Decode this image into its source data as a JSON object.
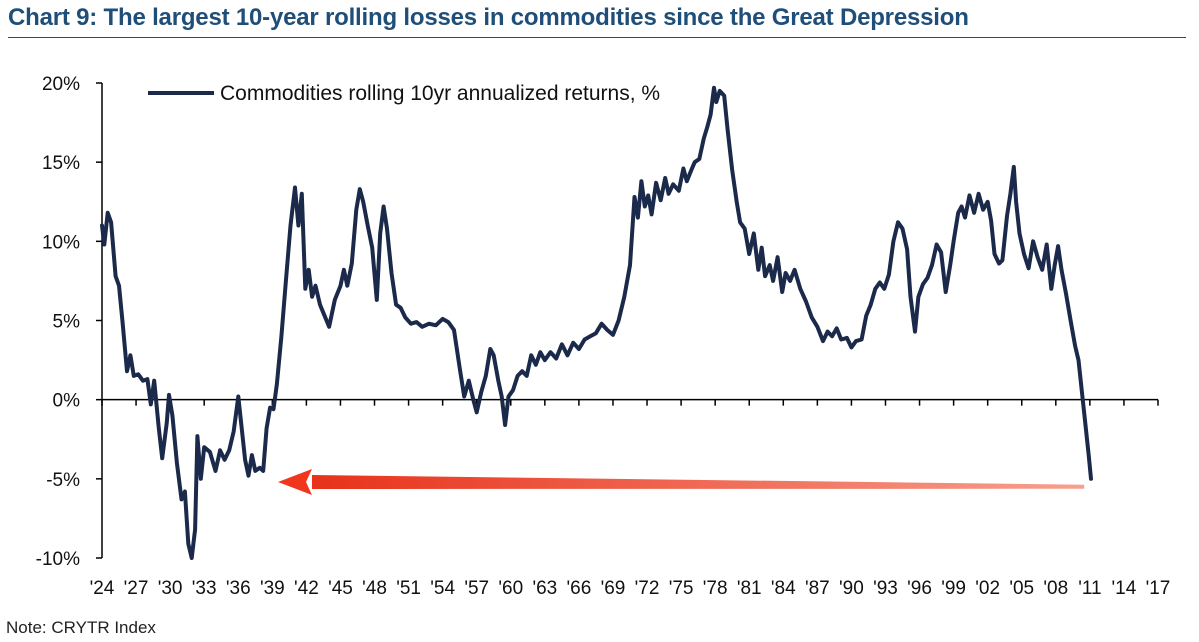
{
  "title": "Chart 9: The largest 10-year rolling losses in commodities since the Great Depression",
  "note": "Note: CRYTR Index",
  "colors": {
    "title": "#1f4e79",
    "series": "#1b2a4a",
    "arrow": "#f0371e"
  },
  "chart_data": {
    "type": "line",
    "xlabel": "",
    "ylabel": "",
    "xlim": [
      1924,
      2017
    ],
    "ylim": [
      -10,
      20
    ],
    "x_ticks": [
      "'24",
      "'27",
      "'30",
      "'33",
      "'36",
      "'39",
      "'42",
      "'45",
      "'48",
      "'51",
      "'54",
      "'57",
      "'60",
      "'63",
      "'66",
      "'69",
      "'72",
      "'75",
      "'78",
      "'81",
      "'84",
      "'87",
      "'90",
      "'93",
      "'96",
      "'99",
      "'02",
      "'05",
      "'08",
      "'11",
      "'14",
      "'17"
    ],
    "x_tick_values": [
      1924,
      1927,
      1930,
      1933,
      1936,
      1939,
      1942,
      1945,
      1948,
      1951,
      1954,
      1957,
      1960,
      1963,
      1966,
      1969,
      1972,
      1975,
      1978,
      1981,
      1984,
      1987,
      1990,
      1993,
      1996,
      1999,
      2002,
      2005,
      2008,
      2011,
      2014,
      2017
    ],
    "y_ticks": [
      "20%",
      "15%",
      "10%",
      "5%",
      "0%",
      "-5%",
      "-10%"
    ],
    "y_tick_values": [
      20,
      15,
      10,
      5,
      0,
      -5,
      -10
    ],
    "legend": {
      "position": "top-left"
    },
    "series": [
      {
        "name": "Commodities rolling 10yr annualized returns, %",
        "points": [
          [
            1924.0,
            11.0
          ],
          [
            1924.2,
            9.8
          ],
          [
            1924.5,
            11.8
          ],
          [
            1924.8,
            11.2
          ],
          [
            1925.2,
            7.8
          ],
          [
            1925.5,
            7.2
          ],
          [
            1925.8,
            5.0
          ],
          [
            1926.2,
            1.8
          ],
          [
            1926.5,
            2.8
          ],
          [
            1926.8,
            1.5
          ],
          [
            1927.2,
            1.6
          ],
          [
            1927.6,
            1.2
          ],
          [
            1928.0,
            1.3
          ],
          [
            1928.3,
            -0.3
          ],
          [
            1928.6,
            1.2
          ],
          [
            1929.0,
            -1.8
          ],
          [
            1929.3,
            -3.7
          ],
          [
            1929.7,
            -1.5
          ],
          [
            1929.9,
            0.3
          ],
          [
            1930.2,
            -1.0
          ],
          [
            1930.6,
            -4.0
          ],
          [
            1931.0,
            -6.3
          ],
          [
            1931.3,
            -5.8
          ],
          [
            1931.6,
            -9.1
          ],
          [
            1931.9,
            -10.0
          ],
          [
            1932.2,
            -8.2
          ],
          [
            1932.4,
            -2.3
          ],
          [
            1932.7,
            -5.0
          ],
          [
            1933.0,
            -3.0
          ],
          [
            1933.5,
            -3.3
          ],
          [
            1934.0,
            -4.5
          ],
          [
            1934.4,
            -3.2
          ],
          [
            1934.8,
            -3.8
          ],
          [
            1935.2,
            -3.2
          ],
          [
            1935.6,
            -2.0
          ],
          [
            1936.0,
            0.2
          ],
          [
            1936.3,
            -1.8
          ],
          [
            1936.6,
            -3.8
          ],
          [
            1936.9,
            -4.8
          ],
          [
            1937.2,
            -3.5
          ],
          [
            1937.5,
            -4.5
          ],
          [
            1937.9,
            -4.3
          ],
          [
            1938.2,
            -4.5
          ],
          [
            1938.5,
            -1.8
          ],
          [
            1938.8,
            -0.5
          ],
          [
            1939.1,
            -0.6
          ],
          [
            1939.4,
            1.0
          ],
          [
            1939.8,
            4.0
          ],
          [
            1940.2,
            7.5
          ],
          [
            1940.6,
            11.0
          ],
          [
            1941.0,
            13.4
          ],
          [
            1941.3,
            11.0
          ],
          [
            1941.6,
            13.0
          ],
          [
            1941.9,
            7.0
          ],
          [
            1942.2,
            8.2
          ],
          [
            1942.5,
            6.5
          ],
          [
            1942.8,
            7.2
          ],
          [
            1943.2,
            6.0
          ],
          [
            1943.6,
            5.3
          ],
          [
            1944.0,
            4.6
          ],
          [
            1944.5,
            6.3
          ],
          [
            1945.0,
            7.2
          ],
          [
            1945.3,
            8.2
          ],
          [
            1945.6,
            7.2
          ],
          [
            1946.0,
            8.6
          ],
          [
            1946.4,
            12.0
          ],
          [
            1946.7,
            13.3
          ],
          [
            1947.0,
            12.5
          ],
          [
            1947.4,
            11.0
          ],
          [
            1947.8,
            9.6
          ],
          [
            1948.2,
            6.3
          ],
          [
            1948.5,
            10.5
          ],
          [
            1948.8,
            12.2
          ],
          [
            1949.1,
            10.8
          ],
          [
            1949.5,
            8.0
          ],
          [
            1949.9,
            6.0
          ],
          [
            1950.3,
            5.8
          ],
          [
            1950.7,
            5.2
          ],
          [
            1951.2,
            4.8
          ],
          [
            1951.7,
            4.9
          ],
          [
            1952.2,
            4.6
          ],
          [
            1952.8,
            4.8
          ],
          [
            1953.4,
            4.7
          ],
          [
            1954.0,
            5.1
          ],
          [
            1954.5,
            4.9
          ],
          [
            1955.0,
            4.4
          ],
          [
            1955.5,
            2.0
          ],
          [
            1955.9,
            0.2
          ],
          [
            1956.3,
            1.2
          ],
          [
            1956.7,
            0.0
          ],
          [
            1957.0,
            -0.8
          ],
          [
            1957.4,
            0.5
          ],
          [
            1957.8,
            1.5
          ],
          [
            1958.2,
            3.2
          ],
          [
            1958.5,
            2.8
          ],
          [
            1958.9,
            1.2
          ],
          [
            1959.2,
            0.2
          ],
          [
            1959.5,
            -1.6
          ],
          [
            1959.8,
            0.2
          ],
          [
            1960.2,
            0.6
          ],
          [
            1960.6,
            1.5
          ],
          [
            1961.0,
            1.8
          ],
          [
            1961.4,
            1.5
          ],
          [
            1961.8,
            2.8
          ],
          [
            1962.2,
            2.2
          ],
          [
            1962.6,
            3.0
          ],
          [
            1963.0,
            2.5
          ],
          [
            1963.5,
            3.0
          ],
          [
            1964.0,
            2.6
          ],
          [
            1964.5,
            3.5
          ],
          [
            1965.0,
            2.8
          ],
          [
            1965.5,
            3.6
          ],
          [
            1966.0,
            3.2
          ],
          [
            1966.5,
            3.8
          ],
          [
            1967.0,
            4.0
          ],
          [
            1967.5,
            4.2
          ],
          [
            1968.0,
            4.8
          ],
          [
            1968.5,
            4.4
          ],
          [
            1969.0,
            4.1
          ],
          [
            1969.5,
            5.0
          ],
          [
            1970.0,
            6.5
          ],
          [
            1970.5,
            8.5
          ],
          [
            1970.9,
            12.8
          ],
          [
            1971.2,
            11.5
          ],
          [
            1971.5,
            13.8
          ],
          [
            1971.8,
            12.2
          ],
          [
            1972.1,
            12.9
          ],
          [
            1972.4,
            11.7
          ],
          [
            1972.8,
            13.7
          ],
          [
            1973.2,
            12.6
          ],
          [
            1973.6,
            14.0
          ],
          [
            1973.9,
            13.0
          ],
          [
            1974.3,
            13.6
          ],
          [
            1974.8,
            13.2
          ],
          [
            1975.2,
            14.6
          ],
          [
            1975.5,
            13.8
          ],
          [
            1975.9,
            14.5
          ],
          [
            1976.2,
            15.0
          ],
          [
            1976.6,
            15.2
          ],
          [
            1977.0,
            16.5
          ],
          [
            1977.3,
            17.2
          ],
          [
            1977.6,
            18.0
          ],
          [
            1977.9,
            19.7
          ],
          [
            1978.1,
            18.8
          ],
          [
            1978.4,
            19.5
          ],
          [
            1978.8,
            19.2
          ],
          [
            1979.1,
            17.0
          ],
          [
            1979.5,
            14.5
          ],
          [
            1979.9,
            12.5
          ],
          [
            1980.2,
            11.2
          ],
          [
            1980.6,
            10.8
          ],
          [
            1981.0,
            9.2
          ],
          [
            1981.4,
            10.5
          ],
          [
            1981.8,
            8.2
          ],
          [
            1982.1,
            9.6
          ],
          [
            1982.4,
            7.8
          ],
          [
            1982.8,
            8.5
          ],
          [
            1983.1,
            7.5
          ],
          [
            1983.5,
            9.0
          ],
          [
            1983.9,
            6.8
          ],
          [
            1984.2,
            8.0
          ],
          [
            1984.6,
            7.5
          ],
          [
            1985.0,
            8.2
          ],
          [
            1985.5,
            7.0
          ],
          [
            1986.0,
            6.2
          ],
          [
            1986.5,
            5.2
          ],
          [
            1987.0,
            4.6
          ],
          [
            1987.5,
            3.7
          ],
          [
            1987.9,
            4.3
          ],
          [
            1988.3,
            4.0
          ],
          [
            1988.7,
            4.5
          ],
          [
            1989.1,
            3.8
          ],
          [
            1989.6,
            3.9
          ],
          [
            1990.0,
            3.3
          ],
          [
            1990.4,
            3.7
          ],
          [
            1990.9,
            3.8
          ],
          [
            1991.3,
            5.3
          ],
          [
            1991.7,
            6.0
          ],
          [
            1992.1,
            7.0
          ],
          [
            1992.5,
            7.4
          ],
          [
            1992.9,
            7.0
          ],
          [
            1993.3,
            7.9
          ],
          [
            1993.7,
            10.0
          ],
          [
            1994.1,
            11.2
          ],
          [
            1994.5,
            10.8
          ],
          [
            1994.9,
            9.5
          ],
          [
            1995.2,
            6.5
          ],
          [
            1995.6,
            4.3
          ],
          [
            1995.9,
            6.5
          ],
          [
            1996.3,
            7.3
          ],
          [
            1996.7,
            7.7
          ],
          [
            1997.1,
            8.5
          ],
          [
            1997.5,
            9.8
          ],
          [
            1997.9,
            9.3
          ],
          [
            1998.3,
            6.8
          ],
          [
            1998.7,
            8.5
          ],
          [
            1999.0,
            10.0
          ],
          [
            1999.4,
            11.8
          ],
          [
            1999.7,
            12.2
          ],
          [
            2000.0,
            11.5
          ],
          [
            2000.4,
            12.9
          ],
          [
            2000.8,
            11.8
          ],
          [
            2001.2,
            13.0
          ],
          [
            2001.6,
            12.0
          ],
          [
            2002.0,
            12.5
          ],
          [
            2002.3,
            11.3
          ],
          [
            2002.6,
            9.2
          ],
          [
            2003.0,
            8.6
          ],
          [
            2003.3,
            8.8
          ],
          [
            2003.7,
            11.6
          ],
          [
            2004.0,
            13.0
          ],
          [
            2004.3,
            14.7
          ],
          [
            2004.5,
            12.5
          ],
          [
            2004.8,
            10.5
          ],
          [
            2005.2,
            9.2
          ],
          [
            2005.6,
            8.3
          ],
          [
            2006.0,
            10.0
          ],
          [
            2006.4,
            9.0
          ],
          [
            2006.8,
            8.2
          ],
          [
            2007.2,
            9.8
          ],
          [
            2007.6,
            7.0
          ],
          [
            2007.9,
            8.5
          ],
          [
            2008.2,
            9.7
          ],
          [
            2008.5,
            8.2
          ],
          [
            2008.9,
            6.7
          ],
          [
            2009.3,
            5.0
          ],
          [
            2009.7,
            3.4
          ],
          [
            2010.0,
            2.5
          ],
          [
            2010.3,
            0.5
          ],
          [
            2010.6,
            -1.5
          ],
          [
            2010.9,
            -3.5
          ],
          [
            2011.1,
            -5.0
          ]
        ]
      }
    ],
    "annotations": [
      {
        "type": "arrow",
        "from": [
          2010.5,
          -5.5
        ],
        "to": [
          1939.5,
          -5.2
        ]
      }
    ]
  }
}
